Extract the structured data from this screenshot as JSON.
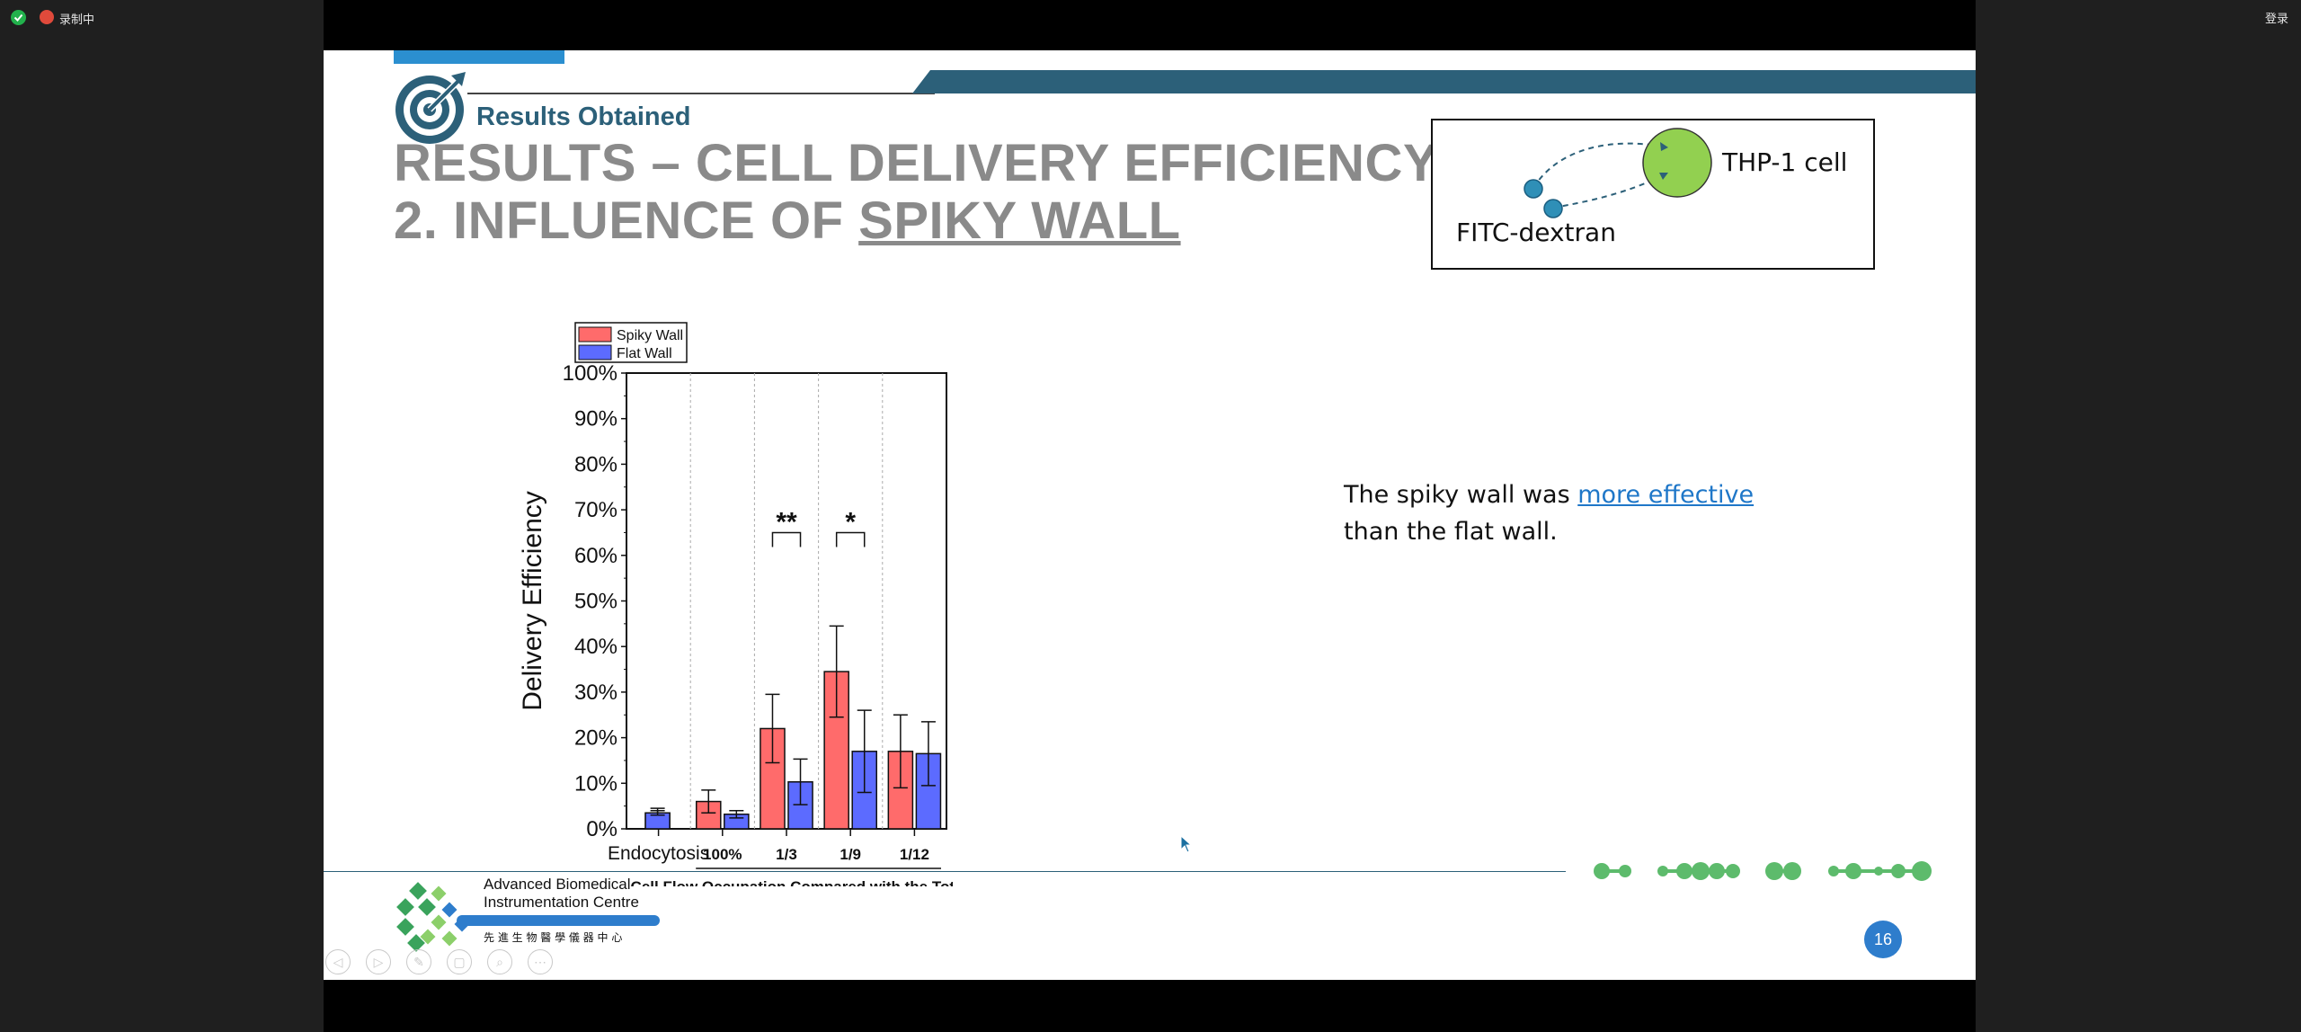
{
  "top_bar": {
    "recording_label": "录制中",
    "login_label": "登录"
  },
  "slide": {
    "section_label": "Results Obtained",
    "title_line1": "RESULTS – CELL DELIVERY EFFICIENCY",
    "title_line2_prefix": "2. INFLUENCE OF ",
    "title_line2_underlined": "SPIKY WALL",
    "inset": {
      "cell_label": "THP-1 cell",
      "dextran_label": "FITC-dextran",
      "cell_color": "#92d050",
      "particle_color": "#2f8fb7"
    },
    "message_prefix": "The spiky wall was ",
    "message_link": "more effective",
    "message_suffix": "than the flat wall.",
    "logo": {
      "name_line1": "Advanced Biomedical",
      "name_line2": "Instrumentation Centre",
      "chinese_name": "先 進 生 物 醫 學 儀 器 中 心"
    },
    "page_number": "16",
    "accent_color": "#2c6079",
    "link_color": "#1f77c8"
  },
  "chart_data": {
    "type": "bar",
    "ylabel": "Delivery Efficiency",
    "xlabel": "Cell Flow Occupation Compared with the Total Flow",
    "categories": [
      "Endocytosis",
      "100%",
      "1/3",
      "1/9",
      "1/12"
    ],
    "ylim": [
      0,
      100
    ],
    "y_ticks": [
      "0%",
      "10%",
      "20%",
      "30%",
      "40%",
      "50%",
      "60%",
      "70%",
      "80%",
      "90%",
      "100%"
    ],
    "series": [
      {
        "name": "Spiky Wall",
        "color": "#ff6b6b",
        "values": [
          3.5,
          6,
          22,
          34.5,
          17
        ],
        "errors": [
          1,
          2.5,
          7.5,
          10,
          8
        ]
      },
      {
        "name": "Flat Wall",
        "color": "#5c6bff",
        "values": [
          3.5,
          3.2,
          10.3,
          17,
          16.5
        ],
        "errors": [
          0.5,
          0.8,
          5,
          9,
          7
        ]
      }
    ],
    "significance": [
      {
        "category": "1/3",
        "label": "**",
        "y": 65
      },
      {
        "category": "1/9",
        "label": "*",
        "y": 65
      }
    ],
    "legend_position": "top-left",
    "grid": false
  }
}
